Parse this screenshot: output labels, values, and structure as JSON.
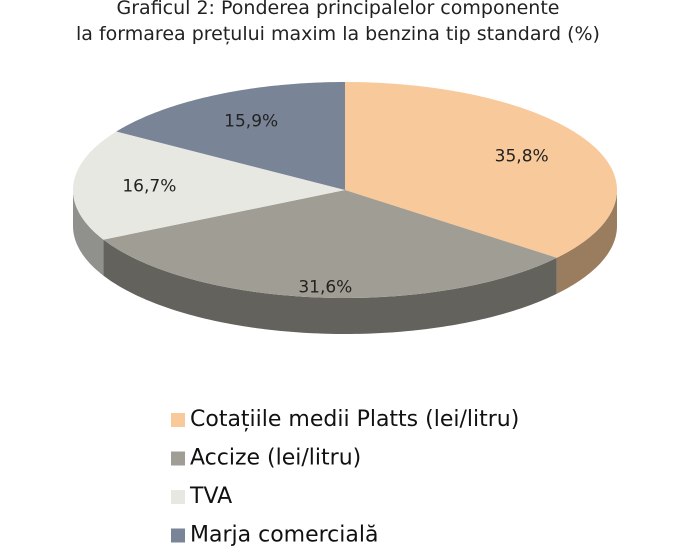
{
  "chart_data": {
    "type": "pie",
    "title": [
      "Graficul 2: Ponderea principalelor componente",
      "la formarea prețului maxim la benzina tip standard (%)"
    ],
    "categories": [
      "Cotațiile medii Platts (lei/litru)",
      "Accize (lei/litru)",
      "TVA",
      "Marja comercială"
    ],
    "values": [
      35.8,
      31.6,
      16.7,
      15.9
    ],
    "value_labels": [
      "35,8%",
      "31,6%",
      "16,7%",
      "15,9%"
    ],
    "colors": [
      "#f8c99a",
      "#a09e94",
      "#e8e8e3",
      "#7a8497"
    ]
  }
}
